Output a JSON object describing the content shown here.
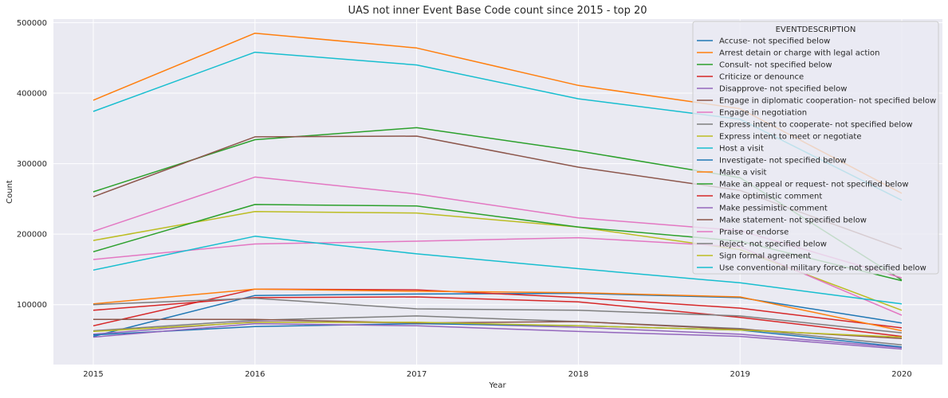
{
  "chart_data": {
    "type": "line",
    "title": "UAS not inner Event Base Code count since 2015 - top 20",
    "xlabel": "Year",
    "ylabel": "Count",
    "x": [
      2015,
      2016,
      2017,
      2018,
      2019,
      2020
    ],
    "ylim": [
      15000,
      505000
    ],
    "yticks": [
      100000,
      200000,
      300000,
      400000,
      500000
    ],
    "ytick_labels": [
      "100000",
      "200000",
      "300000",
      "400000",
      "500000"
    ],
    "grid": true,
    "legend_title": "EVENTDESCRIPTION",
    "legend_position": "top-right",
    "series": [
      {
        "name": "Accuse- not specified below",
        "color": "#1f77b4",
        "values": [
          55000,
          113000,
          115000,
          116000,
          110000,
          74000
        ]
      },
      {
        "name": "Arrest detain or charge with legal action",
        "color": "#ff7f0e",
        "values": [
          390000,
          485000,
          464000,
          411000,
          378000,
          258000
        ]
      },
      {
        "name": "Consult- not specified below",
        "color": "#2ca02c",
        "values": [
          260000,
          334000,
          351000,
          318000,
          280000,
          135000
        ]
      },
      {
        "name": "Criticize or denounce",
        "color": "#d62728",
        "values": [
          70000,
          122000,
          121000,
          110000,
          95000,
          67000
        ]
      },
      {
        "name": "Disapprove- not specified below",
        "color": "#9467bd",
        "values": [
          58000,
          76000,
          74000,
          68000,
          58000,
          39000
        ]
      },
      {
        "name": "Engage in diplomatic cooperation- not specified below",
        "color": "#8c564b",
        "values": [
          253000,
          338000,
          339000,
          295000,
          262000,
          179000
        ]
      },
      {
        "name": "Engage in negotiation",
        "color": "#e377c2",
        "values": [
          204000,
          281000,
          257000,
          223000,
          205000,
          138000
        ]
      },
      {
        "name": "Express intent to cooperate- not specified below",
        "color": "#7f7f7f",
        "values": [
          63000,
          78000,
          84000,
          76000,
          66000,
          43000
        ]
      },
      {
        "name": "Express intent to meet or negotiate",
        "color": "#bcbd22",
        "values": [
          191000,
          232000,
          230000,
          210000,
          178000,
          92000
        ]
      },
      {
        "name": "Host a visit",
        "color": "#17becf",
        "values": [
          374000,
          458000,
          440000,
          392000,
          363000,
          248000
        ]
      },
      {
        "name": "Investigate- not specified below",
        "color": "#1f77b4",
        "values": [
          57000,
          69000,
          73000,
          70000,
          64000,
          40000
        ]
      },
      {
        "name": "Make a visit",
        "color": "#ff7f0e",
        "values": [
          101000,
          122000,
          119000,
          117000,
          111000,
          63000
        ]
      },
      {
        "name": "Make an appeal or request- not specified below",
        "color": "#2ca02c",
        "values": [
          175000,
          242000,
          240000,
          210000,
          190000,
          134000
        ]
      },
      {
        "name": "Make optimistic comment",
        "color": "#d62728",
        "values": [
          92000,
          110000,
          111000,
          104000,
          82000,
          55000
        ]
      },
      {
        "name": "Make pessimistic comment",
        "color": "#9467bd",
        "values": [
          54000,
          73000,
          70000,
          62000,
          55000,
          37000
        ]
      },
      {
        "name": "Make statement- not specified below",
        "color": "#8c564b",
        "values": [
          79000,
          79000,
          74000,
          76000,
          65000,
          52000
        ]
      },
      {
        "name": "Praise or endorse",
        "color": "#e377c2",
        "values": [
          164000,
          186000,
          190000,
          195000,
          182000,
          85000
        ]
      },
      {
        "name": "Reject- not specified below",
        "color": "#7f7f7f",
        "values": [
          100000,
          109000,
          94000,
          92000,
          84000,
          60000
        ]
      },
      {
        "name": "Sign formal agreement",
        "color": "#bcbd22",
        "values": [
          62000,
          75000,
          75000,
          70000,
          64000,
          54000
        ]
      },
      {
        "name": "Use conventional military force- not specified below",
        "color": "#17becf",
        "values": [
          149000,
          197000,
          172000,
          151000,
          131000,
          101000
        ]
      }
    ]
  }
}
